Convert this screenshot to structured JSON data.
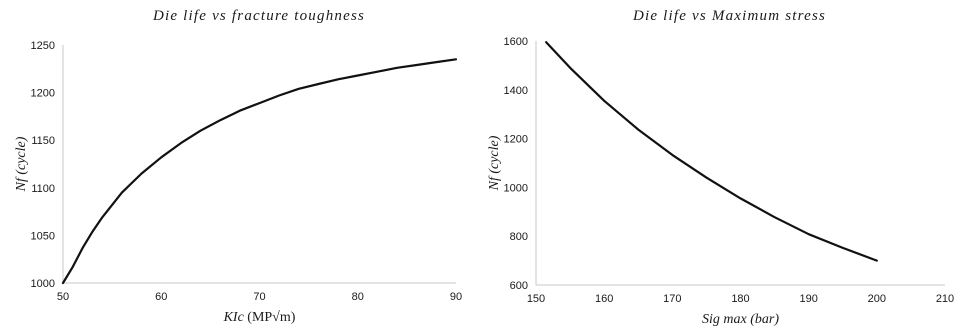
{
  "chart_data": [
    {
      "type": "line",
      "title": "Die life vs fracture toughness",
      "xlabel_main": "KIc",
      "xlabel_unit": " (MP√m)",
      "ylabel": "Nf (cycle)",
      "xlim": [
        50,
        90
      ],
      "ylim": [
        1000,
        1250
      ],
      "xticks": [
        "50",
        "60",
        "70",
        "80",
        "90"
      ],
      "yticks": [
        "1000",
        "1050",
        "1100",
        "1150",
        "1200",
        "1250"
      ],
      "grid": false,
      "series": [
        {
          "color": "#111111",
          "x": [
            50,
            51,
            52,
            53,
            54,
            55,
            56,
            58,
            60,
            62,
            64,
            66,
            68,
            70,
            72,
            74,
            76,
            78,
            80,
            82,
            84,
            86,
            88,
            90
          ],
          "y": [
            1000,
            1017,
            1037,
            1054,
            1069,
            1082,
            1095,
            1115,
            1132,
            1147,
            1160,
            1171,
            1181,
            1189,
            1197,
            1204,
            1209,
            1214,
            1218,
            1222,
            1226,
            1229,
            1232,
            1235
          ]
        }
      ]
    },
    {
      "type": "line",
      "title": "Die life vs Maximum stress",
      "xlabel": "Sig max (bar)",
      "ylabel": "Nf (cycle)",
      "xlim": [
        150,
        210
      ],
      "ylim": [
        600,
        1600
      ],
      "xticks": [
        "150",
        "160",
        "170",
        "180",
        "190",
        "200",
        "210"
      ],
      "yticks": [
        "600",
        "800",
        "1000",
        "1200",
        "1400",
        "1600"
      ],
      "grid": false,
      "series": [
        {
          "color": "#111111",
          "x": [
            151.5,
            155,
            160,
            165,
            170,
            175,
            180,
            185,
            190,
            195,
            200
          ],
          "y": [
            1595,
            1490,
            1355,
            1237,
            1133,
            1040,
            955,
            878,
            808,
            752,
            700
          ]
        }
      ]
    }
  ]
}
